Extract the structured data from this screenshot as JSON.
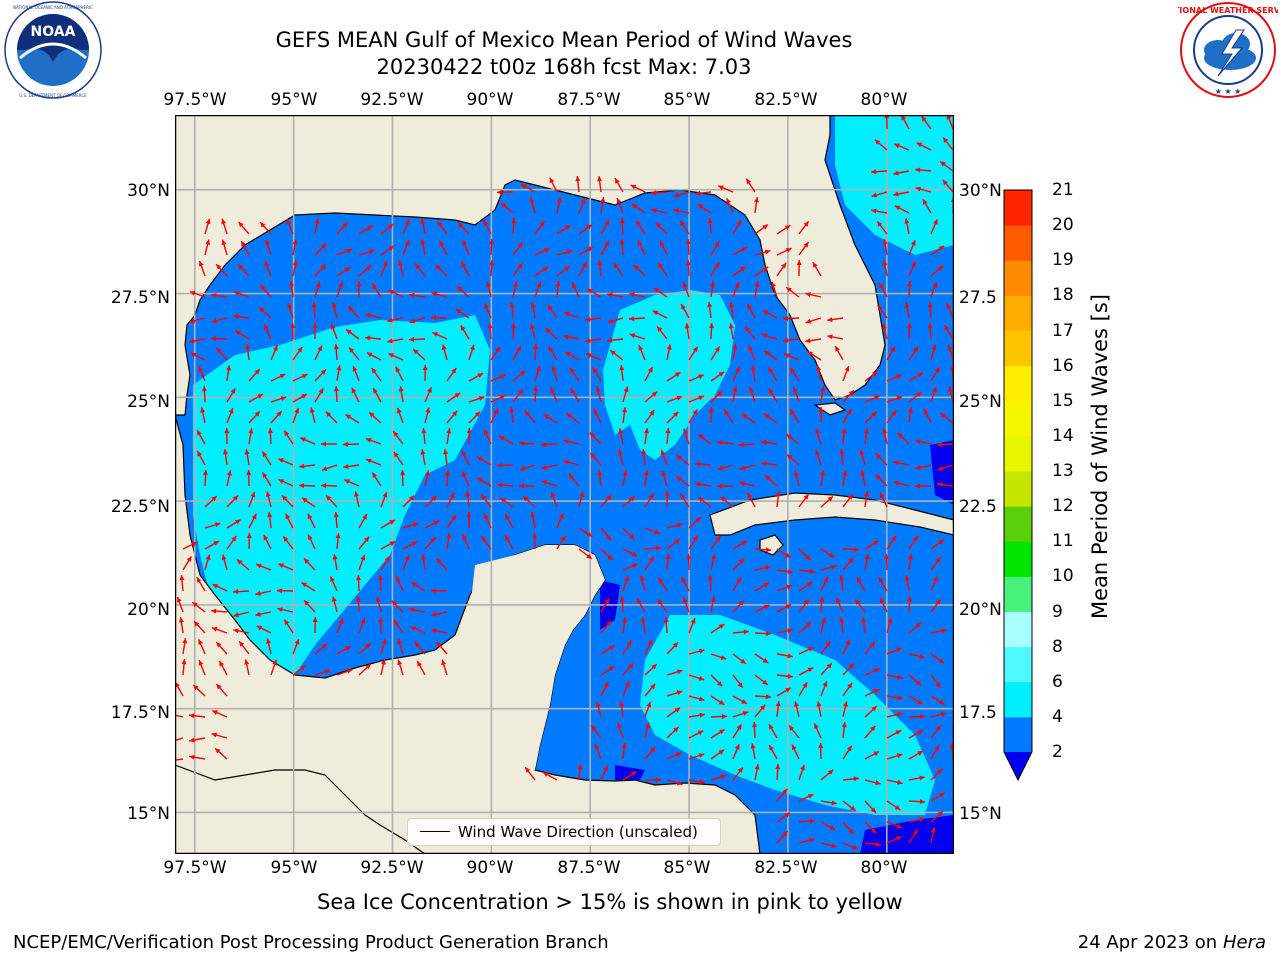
{
  "header": {
    "title_line1": "GEFS MEAN Gulf of Mexico Mean Period of Wind Waves",
    "title_line2": "20230422 t00z 168h fcst   Max: 7.03"
  },
  "logos": {
    "left": {
      "icon": "noaa-logo-icon",
      "text": "NOAA",
      "ring_text": "NATIONAL OCEANIC AND ATMOSPHERIC ADMINISTRATION · U.S. DEPARTMENT OF COMMERCE"
    },
    "right": {
      "icon": "nws-logo-icon",
      "ring_text": "NATIONAL WEATHER SERVICE"
    }
  },
  "map": {
    "lon_ticks": [
      "97.5°W",
      "95°W",
      "92.5°W",
      "90°W",
      "87.5°W",
      "85°W",
      "82.5°W",
      "80°W"
    ],
    "lat_ticks_left": [
      "30°N",
      "27.5°N",
      "25°N",
      "22.5°N",
      "20°N",
      "17.5°N",
      "15°N"
    ],
    "lat_ticks_right": [
      "30°N",
      "27.5",
      "25°N",
      "22.5",
      "20°N",
      "17.5",
      "15°N"
    ],
    "lon_range": [
      -98,
      -78.3
    ],
    "lat_range": [
      14,
      31.8
    ],
    "grid": true,
    "land_color": "#efecdb",
    "arrow_color": "#ff0000",
    "legend": {
      "label": "Wind Wave Direction (unscaled)"
    }
  },
  "colorbar": {
    "label": "Mean Period of Wind Waves [s]",
    "ticks": [
      "2",
      "4",
      "6",
      "8",
      "9",
      "10",
      "11",
      "12",
      "13",
      "14",
      "15",
      "16",
      "17",
      "18",
      "19",
      "20",
      "21"
    ],
    "levels": [
      2,
      4,
      6,
      8,
      9,
      10,
      11,
      12,
      13,
      14,
      15,
      16,
      17,
      18,
      19,
      20,
      21
    ],
    "colors": [
      "#007bff",
      "#00eeff",
      "#4ef8ff",
      "#a8ffff",
      "#48f27a",
      "#00e400",
      "#5ad00a",
      "#c6e600",
      "#e8f500",
      "#f5f500",
      "#ffee00",
      "#ffc400",
      "#ffad00",
      "#ff8b00",
      "#ff5a00",
      "#ff2400"
    ],
    "under_color": "#0000ee"
  },
  "notes": {
    "sea_ice": "Sea Ice Concentration > 15% is shown in pink to yellow"
  },
  "footer": {
    "left": "NCEP/EMC/Verification Post Processing Product Generation Branch",
    "date": "24 Apr 2023 on ",
    "machine": "Hera"
  }
}
